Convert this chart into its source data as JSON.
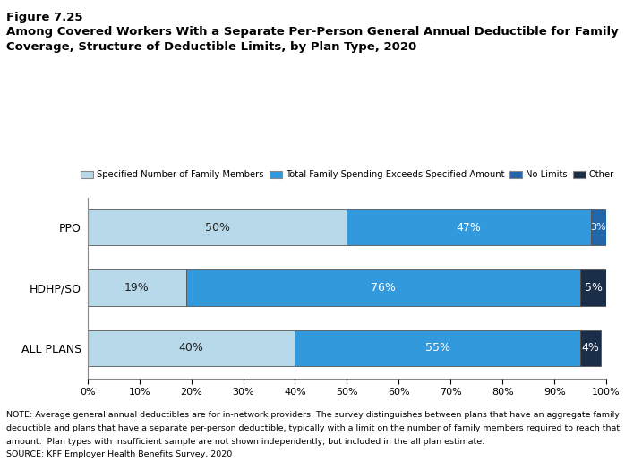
{
  "title_line1": "Figure 7.25",
  "title_line2a": "Among Covered Workers With a Separate Per-Person General Annual Deductible for Family",
  "title_line2b": "Coverage, Structure of Deductible Limits, by Plan Type, 2020",
  "categories": [
    "PPO",
    "HDHP/SO",
    "ALL PLANS"
  ],
  "series_names": [
    "Specified Number of Family Members",
    "Total Family Spending Exceeds Specified Amount",
    "No Limits",
    "Other"
  ],
  "series_data": {
    "Specified Number of Family Members": [
      50,
      19,
      40
    ],
    "Total Family Spending Exceeds Specified Amount": [
      47,
      76,
      55
    ],
    "No Limits": [
      3,
      0,
      0
    ],
    "Other": [
      0,
      5,
      4
    ]
  },
  "colors": {
    "Specified Number of Family Members": "#b8d9ea",
    "Total Family Spending Exceeds Specified Amount": "#3399dd",
    "No Limits": "#2266aa",
    "Other": "#1a2e4a"
  },
  "pct_labels": {
    "Specified Number of Family Members": [
      "50%",
      "19%",
      "40%"
    ],
    "Total Family Spending Exceeds Specified Amount": [
      "47%",
      "76%",
      "55%"
    ],
    "No Limits": [
      "3%",
      "",
      ""
    ],
    "Other": [
      "",
      "5%",
      "4%"
    ]
  },
  "note_line1": "NOTE: Average general annual deductibles are for in-network providers. The survey distinguishes between plans that have an aggregate family",
  "note_line2": "deductible and plans that have a separate per-person deductible, typically with a limit on the number of family members required to reach that",
  "note_line3": "amount.  Plan types with insufficient sample are not shown independently, but included in the all plan estimate.",
  "note_line4": "SOURCE: KFF Employer Health Benefits Survey, 2020",
  "bar_height": 0.6,
  "xlim": [
    0,
    100
  ],
  "xticks": [
    0,
    10,
    20,
    30,
    40,
    50,
    60,
    70,
    80,
    90,
    100
  ]
}
